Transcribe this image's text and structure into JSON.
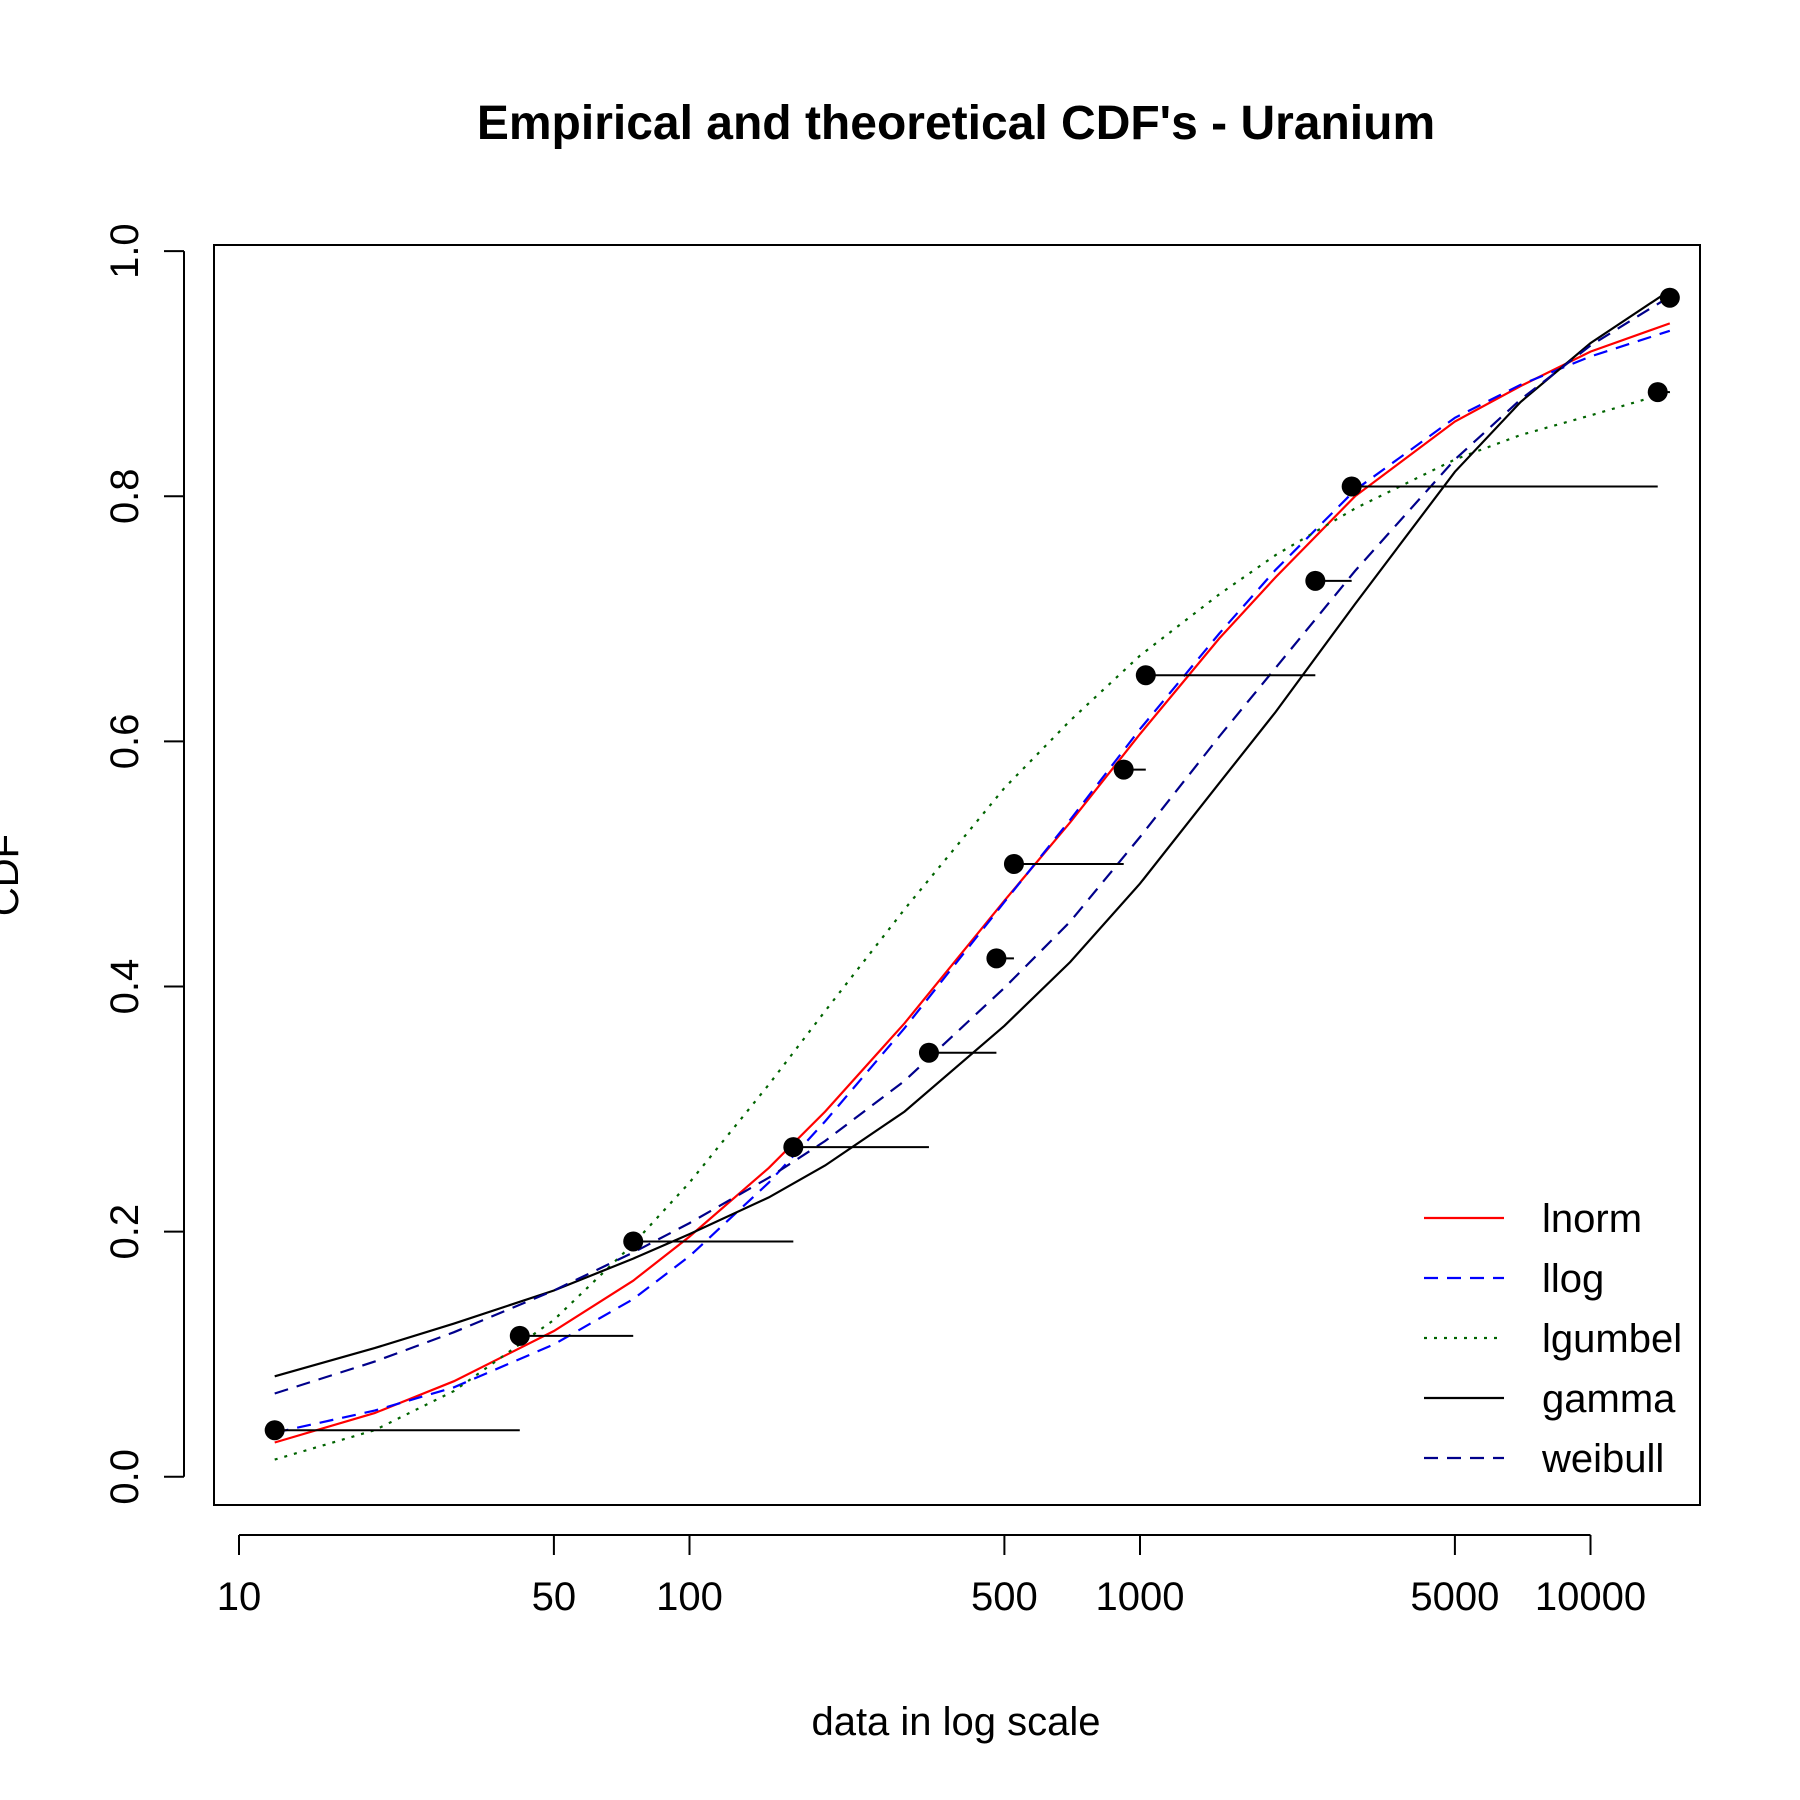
{
  "chart_data": {
    "type": "line",
    "title": "Empirical and theoretical CDF's - Uranium",
    "xlabel": "data in log scale",
    "ylabel": "CDF",
    "x_scale": "log",
    "xlim": [
      8.8,
      17500
    ],
    "ylim": [
      -0.023,
      1.005
    ],
    "x_ticks": [
      10,
      50,
      100,
      500,
      1000,
      5000,
      10000
    ],
    "x_tick_labels": [
      "10",
      "50",
      "100",
      "500",
      "1000",
      "5000",
      "10000"
    ],
    "y_ticks": [
      0.0,
      0.2,
      0.4,
      0.6,
      0.8,
      1.0
    ],
    "y_tick_labels": [
      "0.0",
      "0.2",
      "0.4",
      "0.6",
      "0.8",
      "1.0"
    ],
    "grid": false,
    "legend_position": "bottom-right",
    "empirical": {
      "x": [
        12,
        42,
        75,
        170,
        340,
        480,
        525,
        920,
        1030,
        2450,
        2950,
        14100,
        15000
      ],
      "y": [
        0.038,
        0.115,
        0.192,
        0.269,
        0.346,
        0.423,
        0.5,
        0.577,
        0.654,
        0.731,
        0.808,
        0.885,
        0.962
      ]
    },
    "series": [
      {
        "name": "lnorm",
        "color": "#ff0000",
        "dash": "solid",
        "x": [
          12,
          20,
          30,
          50,
          75,
          100,
          150,
          200,
          300,
          500,
          700,
          1000,
          1500,
          2000,
          3000,
          5000,
          7000,
          10000,
          15000
        ],
        "y": [
          0.028,
          0.052,
          0.078,
          0.119,
          0.16,
          0.196,
          0.252,
          0.298,
          0.37,
          0.47,
          0.534,
          0.606,
          0.684,
          0.734,
          0.8,
          0.861,
          0.89,
          0.918,
          0.941
        ]
      },
      {
        "name": "llog",
        "color": "#0000ff",
        "dash": "dashed",
        "x": [
          12,
          20,
          30,
          50,
          75,
          100,
          150,
          200,
          300,
          500,
          700,
          1000,
          1500,
          2000,
          3000,
          5000,
          7000,
          10000,
          15000
        ],
        "y": [
          0.036,
          0.054,
          0.073,
          0.108,
          0.145,
          0.18,
          0.24,
          0.29,
          0.366,
          0.469,
          0.536,
          0.61,
          0.688,
          0.74,
          0.805,
          0.864,
          0.891,
          0.914,
          0.935
        ]
      },
      {
        "name": "lgumbel",
        "color": "#006400",
        "dash": "dotted",
        "x": [
          12,
          20,
          30,
          50,
          75,
          100,
          150,
          200,
          300,
          500,
          700,
          1000,
          1500,
          2000,
          3000,
          5000,
          7000,
          10000,
          15000
        ],
        "y": [
          0.014,
          0.038,
          0.07,
          0.128,
          0.19,
          0.24,
          0.32,
          0.38,
          0.463,
          0.562,
          0.617,
          0.67,
          0.72,
          0.752,
          0.79,
          0.83,
          0.85,
          0.866,
          0.885
        ]
      },
      {
        "name": "gamma",
        "color": "#000000",
        "dash": "solid",
        "x": [
          12,
          20,
          30,
          50,
          75,
          100,
          150,
          200,
          300,
          500,
          700,
          1000,
          1500,
          2000,
          3000,
          5000,
          7000,
          10000,
          15000
        ],
        "y": [
          0.082,
          0.105,
          0.125,
          0.152,
          0.178,
          0.198,
          0.228,
          0.254,
          0.298,
          0.368,
          0.42,
          0.484,
          0.566,
          0.624,
          0.712,
          0.82,
          0.877,
          0.925,
          0.968
        ]
      },
      {
        "name": "weibull",
        "color": "#00008b",
        "dash": "dashed",
        "x": [
          12,
          20,
          30,
          50,
          75,
          100,
          150,
          200,
          300,
          500,
          700,
          1000,
          1500,
          2000,
          3000,
          5000,
          7000,
          10000,
          15000
        ],
        "y": [
          0.068,
          0.094,
          0.118,
          0.152,
          0.183,
          0.207,
          0.244,
          0.274,
          0.323,
          0.399,
          0.453,
          0.522,
          0.604,
          0.66,
          0.739,
          0.83,
          0.879,
          0.923,
          0.963
        ]
      }
    ]
  }
}
